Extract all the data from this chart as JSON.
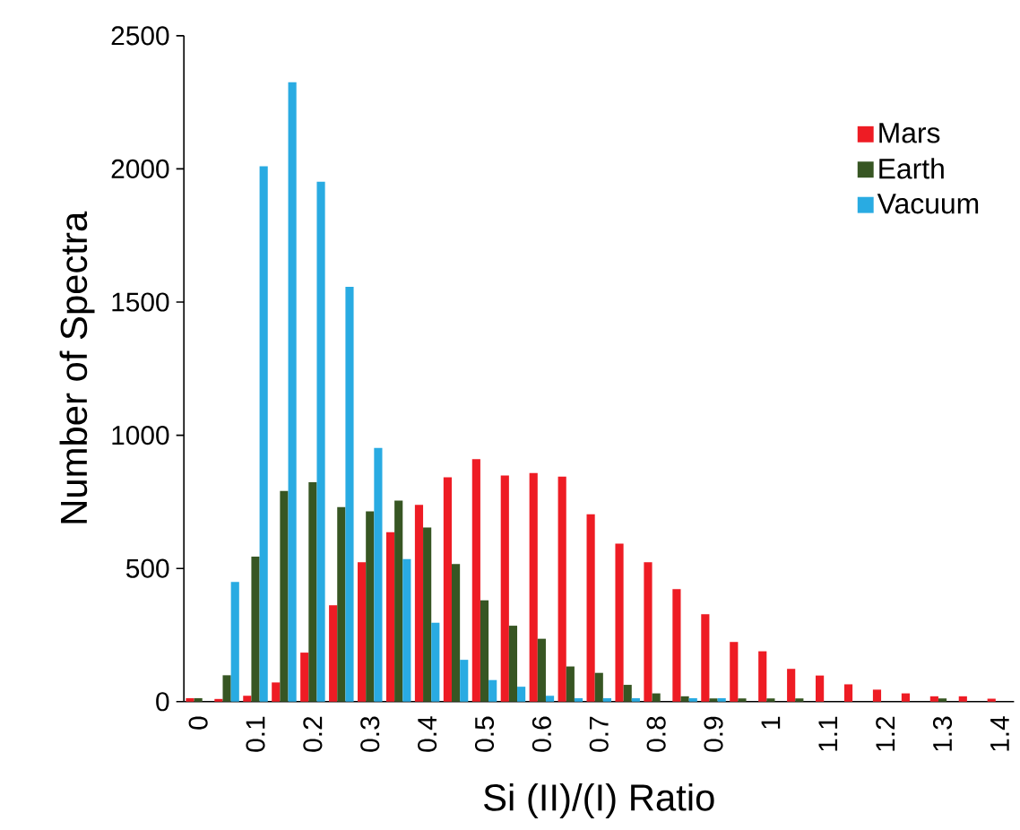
{
  "chart_data": {
    "type": "bar",
    "xlabel": "Si (II)/(I) Ratio",
    "ylabel": "Number of Spectra",
    "categories": [
      "0",
      null,
      "0.1",
      null,
      "0.2",
      null,
      "0.3",
      null,
      "0.4",
      null,
      "0.5",
      null,
      "0.6",
      null,
      "0.7",
      null,
      "0.8",
      null,
      "0.9",
      null,
      "1",
      null,
      "1.1",
      null,
      "1.2",
      null,
      "1.3",
      null,
      "1.4"
    ],
    "series": [
      {
        "name": "Mars",
        "color": "#ee1c24",
        "values": [
          13,
          10,
          22,
          72,
          184,
          362,
          523,
          636,
          739,
          842,
          910,
          849,
          858,
          845,
          703,
          593,
          523,
          422,
          328,
          224,
          189,
          123,
          98,
          65,
          45,
          31,
          20,
          20,
          11
        ]
      },
      {
        "name": "Earth",
        "color": "#375623",
        "values": [
          13,
          99,
          544,
          791,
          824,
          730,
          714,
          755,
          654,
          517,
          380,
          285,
          236,
          132,
          108,
          63,
          31,
          20,
          12,
          12,
          12,
          12,
          0,
          0,
          0,
          0,
          12,
          0,
          0
        ]
      },
      {
        "name": "Vacuum",
        "color": "#29abe2",
        "values": [
          0,
          449,
          2010,
          2325,
          1952,
          1557,
          952,
          535,
          296,
          157,
          81,
          56,
          22,
          13,
          13,
          13,
          0,
          13,
          13,
          0,
          0,
          0,
          0,
          0,
          0,
          0,
          0,
          0,
          0
        ]
      }
    ],
    "ylim": [
      0,
      2500
    ],
    "yticks": [
      0,
      500,
      1000,
      1500,
      2000,
      2500
    ],
    "grid": false,
    "legend": "top right"
  }
}
